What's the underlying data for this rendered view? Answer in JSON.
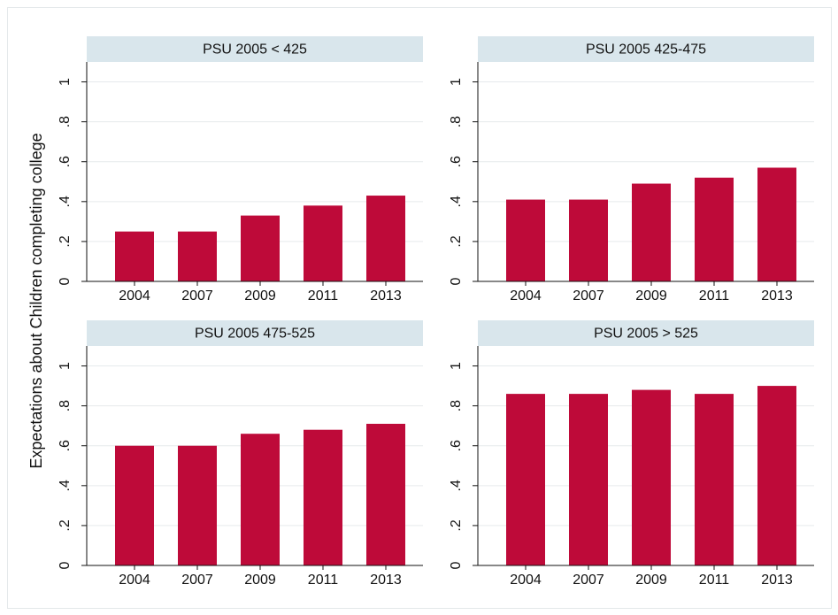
{
  "y_axis_label": "Expectations about Children completing college",
  "chart_data": [
    {
      "type": "bar",
      "title": "PSU 2005 < 425",
      "categories": [
        "2004",
        "2007",
        "2009",
        "2011",
        "2013"
      ],
      "values": [
        0.25,
        0.25,
        0.33,
        0.38,
        0.43
      ],
      "color": "#be0a39",
      "ylim": [
        0,
        1.1
      ],
      "yticks": [
        0,
        {
          "value": 0.2,
          "label": ".2"
        },
        {
          "value": 0.4,
          "label": ".4"
        },
        {
          "value": 0.6,
          "label": ".6"
        },
        {
          "value": 0.8,
          "label": ".8"
        },
        1
      ],
      "grid": true
    },
    {
      "type": "bar",
      "title": "PSU 2005 425-475",
      "categories": [
        "2004",
        "2007",
        "2009",
        "2011",
        "2013"
      ],
      "values": [
        0.41,
        0.41,
        0.49,
        0.52,
        0.57
      ],
      "color": "#be0a39",
      "ylim": [
        0,
        1.1
      ],
      "yticks": [
        0,
        {
          "value": 0.2,
          "label": ".2"
        },
        {
          "value": 0.4,
          "label": ".4"
        },
        {
          "value": 0.6,
          "label": ".6"
        },
        {
          "value": 0.8,
          "label": ".8"
        },
        1
      ],
      "grid": true
    },
    {
      "type": "bar",
      "title": "PSU 2005 475-525",
      "categories": [
        "2004",
        "2007",
        "2009",
        "2011",
        "2013"
      ],
      "values": [
        0.6,
        0.6,
        0.66,
        0.68,
        0.71
      ],
      "color": "#be0a39",
      "ylim": [
        0,
        1.1
      ],
      "yticks": [
        0,
        {
          "value": 0.2,
          "label": ".2"
        },
        {
          "value": 0.4,
          "label": ".4"
        },
        {
          "value": 0.6,
          "label": ".6"
        },
        {
          "value": 0.8,
          "label": ".8"
        },
        1
      ],
      "grid": true
    },
    {
      "type": "bar",
      "title": "PSU 2005 > 525",
      "categories": [
        "2004",
        "2007",
        "2009",
        "2011",
        "2013"
      ],
      "values": [
        0.86,
        0.86,
        0.88,
        0.86,
        0.9
      ],
      "color": "#be0a39",
      "ylim": [
        0,
        1.1
      ],
      "yticks": [
        0,
        {
          "value": 0.2,
          "label": ".2"
        },
        {
          "value": 0.4,
          "label": ".4"
        },
        {
          "value": 0.6,
          "label": ".6"
        },
        {
          "value": 0.8,
          "label": ".8"
        },
        1
      ],
      "grid": true
    }
  ]
}
